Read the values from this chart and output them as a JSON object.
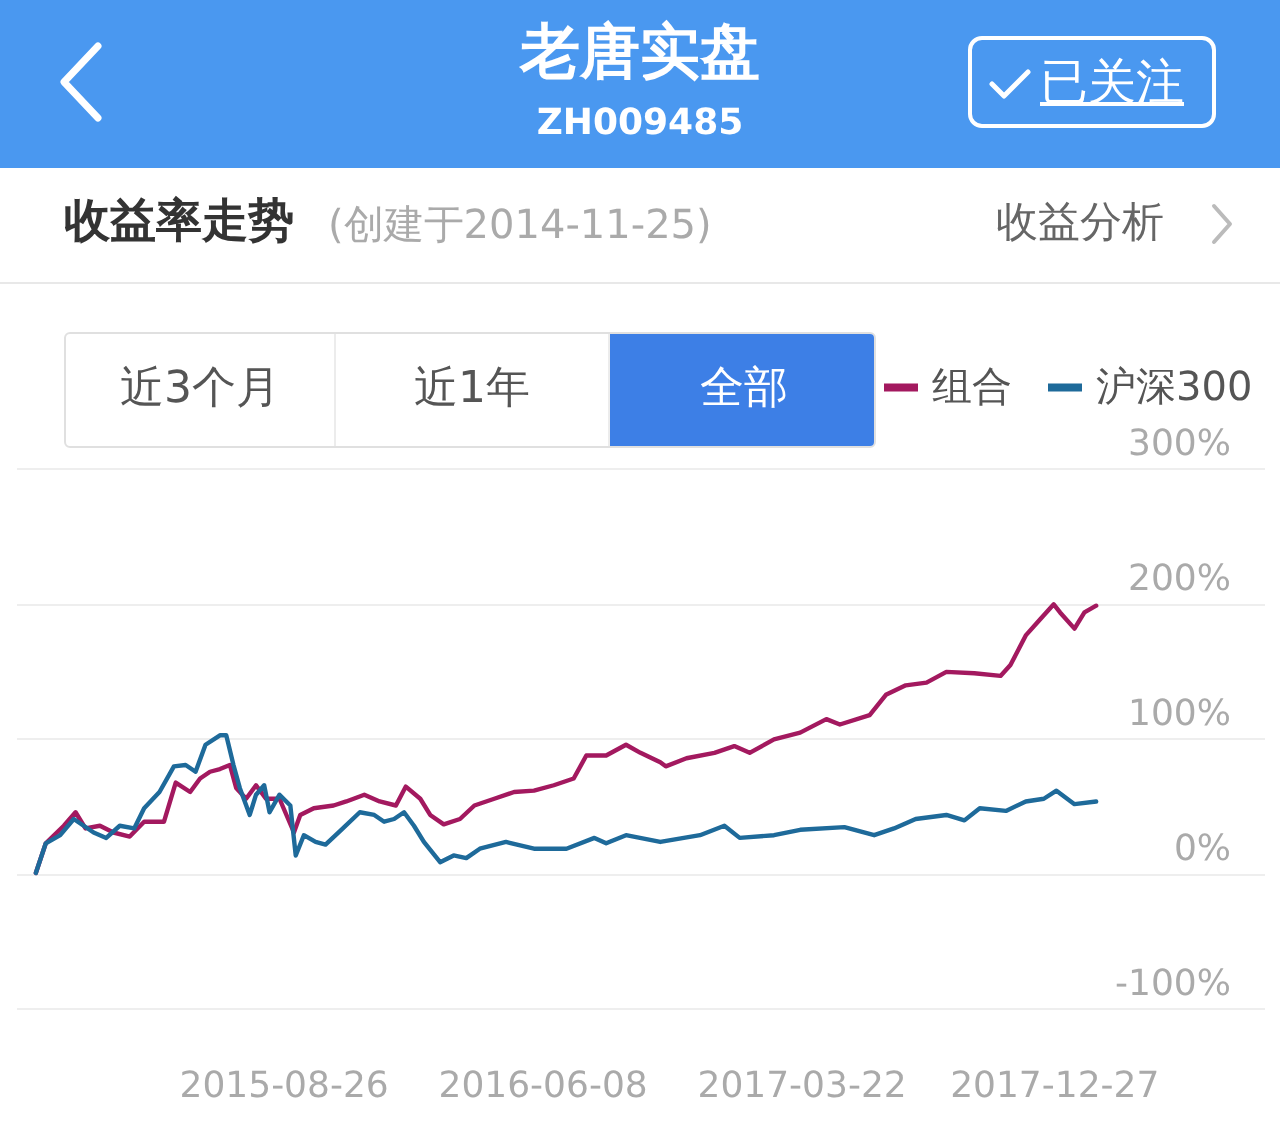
{
  "chart_data": {
    "type": "line",
    "title": "老唐实盘",
    "subtitle": "ZH009485",
    "annotations": [
      "收益率走势",
      "(创建于2014-11-25)",
      "收益分析",
      "已关注",
      "近3个月",
      "近1年",
      "全部"
    ],
    "series": [
      {
        "name": "组合",
        "color": "#a3195f",
        "x": [
          "2014-11-25",
          "2014-12-06",
          "2014-12-26",
          "2015-01-08",
          "2015-01-19",
          "2015-02-04",
          "2015-02-19",
          "2015-03-09",
          "2015-03-25",
          "2015-04-16",
          "2015-04-29",
          "2015-05-15",
          "2015-05-26",
          "2015-06-06",
          "2015-06-17",
          "2015-06-28",
          "2015-07-05",
          "2015-07-16",
          "2015-07-27",
          "2015-08-07",
          "2015-08-22",
          "2015-09-07",
          "2015-09-14",
          "2015-09-29",
          "2015-10-21",
          "2015-11-04",
          "2015-11-24",
          "2015-12-11",
          "2015-12-29",
          "2016-01-09",
          "2016-01-25",
          "2016-02-05",
          "2016-02-20",
          "2016-03-09",
          "2016-03-25",
          "2016-04-16",
          "2016-05-08",
          "2016-05-30",
          "2016-06-21",
          "2016-07-13",
          "2016-07-27",
          "2016-08-18",
          "2016-09-09",
          "2016-09-25",
          "2016-10-17",
          "2016-10-23",
          "2016-11-15",
          "2016-12-16",
          "2017-01-07",
          "2017-01-24",
          "2017-02-20",
          "2017-03-21",
          "2017-04-19",
          "2017-05-04",
          "2017-06-06",
          "2017-06-24",
          "2017-07-16",
          "2017-08-08",
          "2017-08-30",
          "2017-09-30",
          "2017-10-29",
          "2017-11-09",
          "2017-11-26",
          "2017-12-12",
          "2017-12-27",
          "2018-01-03",
          "2018-01-19",
          "2018-01-30",
          "2018-02-12"
        ],
        "values": [
          0,
          22,
          35,
          45,
          33,
          35,
          30,
          27,
          38,
          38,
          67,
          60,
          70,
          75,
          77,
          80,
          63,
          55,
          65,
          55,
          55,
          30,
          43,
          48,
          50,
          53,
          58,
          53,
          50,
          64,
          55,
          43,
          36,
          40,
          50,
          55,
          60,
          61,
          65,
          70,
          87,
          87,
          95,
          89,
          82,
          79,
          85,
          89,
          94,
          89,
          99,
          104,
          114,
          110,
          117,
          132,
          139,
          141,
          149,
          148,
          146,
          154,
          176,
          188,
          199,
          193,
          181,
          193,
          198
        ]
      },
      {
        "name": "沪深300",
        "color": "#1e6a9a",
        "x": [
          "2014-11-25",
          "2014-12-06",
          "2014-12-22",
          "2015-01-06",
          "2015-01-17",
          "2015-01-28",
          "2015-02-11",
          "2015-02-26",
          "2015-03-14",
          "2015-03-25",
          "2015-04-11",
          "2015-04-27",
          "2015-05-10",
          "2015-05-21",
          "2015-06-01",
          "2015-06-17",
          "2015-06-24",
          "2015-07-02",
          "2015-07-09",
          "2015-07-20",
          "2015-07-27",
          "2015-08-05",
          "2015-08-11",
          "2015-08-22",
          "2015-09-03",
          "2015-09-09",
          "2015-09-18",
          "2015-10-01",
          "2015-10-12",
          "2015-10-28",
          "2015-11-19",
          "2015-12-05",
          "2015-12-16",
          "2015-12-27",
          "2016-01-07",
          "2016-01-18",
          "2016-01-29",
          "2016-02-16",
          "2016-03-02",
          "2016-03-16",
          "2016-03-31",
          "2016-04-29",
          "2016-05-30",
          "2016-07-05",
          "2016-08-05",
          "2016-08-18",
          "2016-09-09",
          "2016-10-17",
          "2016-11-30",
          "2016-12-27",
          "2017-01-13",
          "2017-02-20",
          "2017-03-21",
          "2017-05-09",
          "2017-06-11",
          "2017-07-03",
          "2017-07-27",
          "2017-08-30",
          "2017-09-19",
          "2017-10-06",
          "2017-11-04",
          "2017-11-26",
          "2017-12-16",
          "2017-12-30",
          "2018-01-19",
          "2018-02-12"
        ],
        "values": [
          0,
          22,
          28,
          40,
          35,
          30,
          26,
          35,
          33,
          48,
          60,
          79,
          80,
          75,
          95,
          102,
          102,
          80,
          63,
          43,
          58,
          65,
          45,
          58,
          50,
          13,
          28,
          23,
          21,
          31,
          45,
          43,
          38,
          40,
          45,
          35,
          23,
          8,
          13,
          11,
          18,
          23,
          18,
          18,
          26,
          22,
          28,
          23,
          28,
          35,
          26,
          28,
          32,
          34,
          28,
          33,
          40,
          43,
          39,
          48,
          46,
          53,
          55,
          61,
          51,
          53
        ]
      }
    ],
    "xlim": [
      "2014-11-03",
      "2018-08-17"
    ],
    "xticks": [
      "2015-08-26",
      "2016-06-08",
      "2017-03-22",
      "2017-12-27"
    ],
    "ylim": [
      -100,
      300
    ],
    "yticks": [
      {
        "value": -100,
        "label": "-100%"
      },
      {
        "value": 0,
        "label": "0%"
      },
      {
        "value": 100,
        "label": "100%"
      },
      {
        "value": 200,
        "label": "200%"
      },
      {
        "value": 300,
        "label": "300%"
      }
    ],
    "grid": "y",
    "legend": "top right"
  }
}
